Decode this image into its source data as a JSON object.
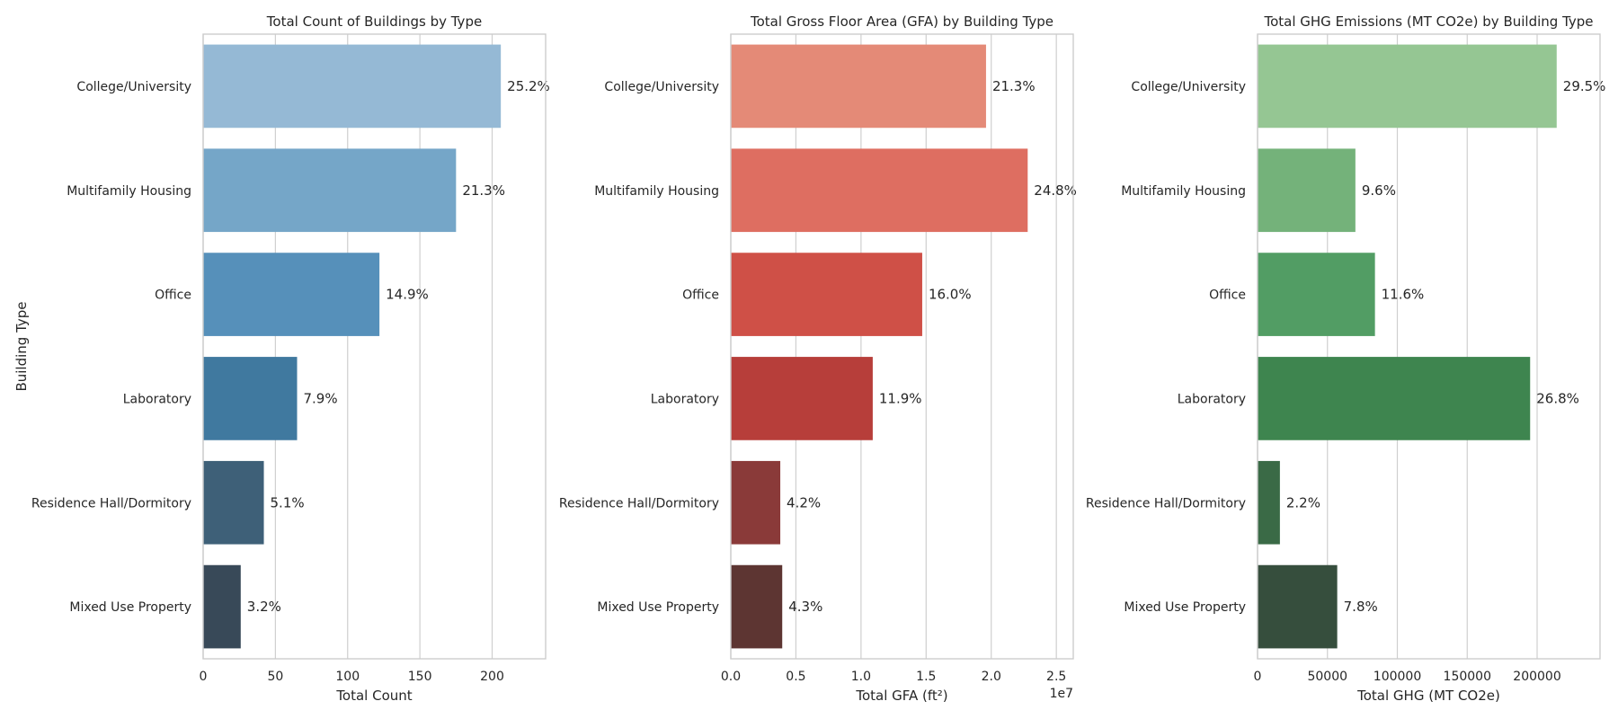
{
  "chart_data": [
    {
      "type": "bar",
      "orientation": "horizontal",
      "title": "Total Count of Buildings by Type",
      "xlabel": "Total Count",
      "ylabel": "Building Type",
      "categories": [
        "College/University",
        "Multifamily Housing",
        "Office",
        "Laboratory",
        "Residence Hall/Dormitory",
        "Mixed Use Property"
      ],
      "values": [
        206,
        175,
        122,
        65,
        42,
        26
      ],
      "labels": [
        "25.2%",
        "21.3%",
        "14.9%",
        "7.9%",
        "5.1%",
        "3.2%"
      ],
      "xlim": [
        0,
        237
      ],
      "xticks": [
        0,
        50,
        100,
        150,
        200
      ],
      "xtick_labels": [
        "0",
        "50",
        "100",
        "150",
        "200"
      ],
      "offset_text": "",
      "colors": [
        "#95b9d5",
        "#75a6c8",
        "#5690ba",
        "#40799f",
        "#3e6078",
        "#384958"
      ],
      "grid": true
    },
    {
      "type": "bar",
      "orientation": "horizontal",
      "title": "Total Gross Floor Area (GFA) by Building Type",
      "xlabel": "Total GFA (ft²)",
      "ylabel": "",
      "categories": [
        "College/University",
        "Multifamily Housing",
        "Office",
        "Laboratory",
        "Residence Hall/Dormitory",
        "Mixed Use Property"
      ],
      "values": [
        19600000,
        22800000,
        14700000,
        10900000,
        3800000,
        3950000
      ],
      "labels": [
        "21.3%",
        "24.8%",
        "16.0%",
        "11.9%",
        "4.2%",
        "4.3%"
      ],
      "xlim": [
        0,
        26300000
      ],
      "xticks": [
        0,
        5000000,
        10000000,
        15000000,
        20000000,
        25000000
      ],
      "xtick_labels": [
        "0.0",
        "0.5",
        "1.0",
        "1.5",
        "2.0",
        "2.5"
      ],
      "offset_text": "1e7",
      "colors": [
        "#e48a77",
        "#de6e61",
        "#cf5047",
        "#b73e3a",
        "#8a3a39",
        "#5d3532"
      ],
      "grid": true
    },
    {
      "type": "bar",
      "orientation": "horizontal",
      "title": "Total GHG Emissions (MT CO2e) by Building Type",
      "xlabel": "Total GHG (MT CO2e)",
      "ylabel": "",
      "categories": [
        "College/University",
        "Multifamily Housing",
        "Office",
        "Laboratory",
        "Residence Hall/Dormitory",
        "Mixed Use Property"
      ],
      "values": [
        214000,
        70000,
        84000,
        195000,
        16000,
        57000
      ],
      "labels": [
        "29.5%",
        "9.6%",
        "11.6%",
        "26.8%",
        "2.2%",
        "7.8%"
      ],
      "xlim": [
        0,
        245000
      ],
      "xticks": [
        0,
        50000,
        100000,
        150000,
        200000
      ],
      "xtick_labels": [
        "0",
        "50000",
        "100000",
        "150000",
        "200000"
      ],
      "offset_text": "",
      "colors": [
        "#95c693",
        "#74b27a",
        "#529d64",
        "#3e854f",
        "#3a6a46",
        "#364e3d"
      ],
      "grid": true
    }
  ]
}
